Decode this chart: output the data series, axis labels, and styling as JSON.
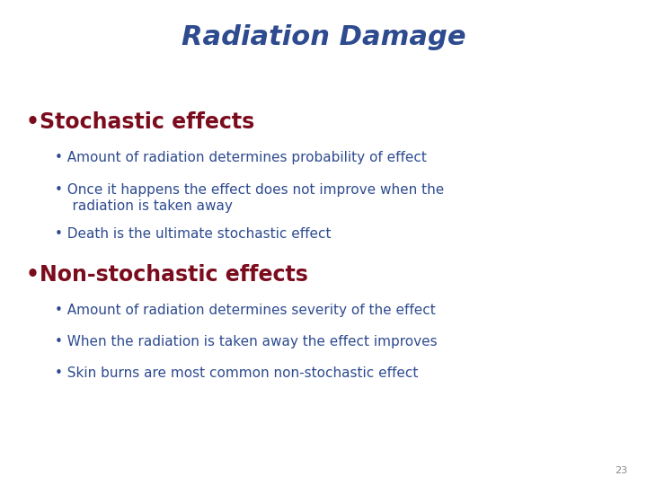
{
  "title": "Radiation Damage",
  "title_color": "#2E4B8F",
  "title_fontsize": 22,
  "background_color": "#FFFFFF",
  "bullet1_text": "Stochastic effects",
  "bullet1_color": "#7B0C1E",
  "bullet1_fontsize": 17,
  "sub_bullets1": [
    "Amount of radiation determines probability of effect",
    "Once it happens the effect does not improve when the\n    radiation is taken away",
    "Death is the ultimate stochastic effect"
  ],
  "bullet2_text": "Non-stochastic effects",
  "bullet2_color": "#7B0C1E",
  "bullet2_fontsize": 17,
  "sub_bullets2": [
    "Amount of radiation determines severity of the effect",
    "When the radiation is taken away the effect improves",
    "Skin burns are most common non-stochastic effect"
  ],
  "sub_bullet_color": "#2E4B8F",
  "sub_bullet_fontsize": 11,
  "page_number": "23",
  "page_number_color": "#888888",
  "page_number_fontsize": 8
}
